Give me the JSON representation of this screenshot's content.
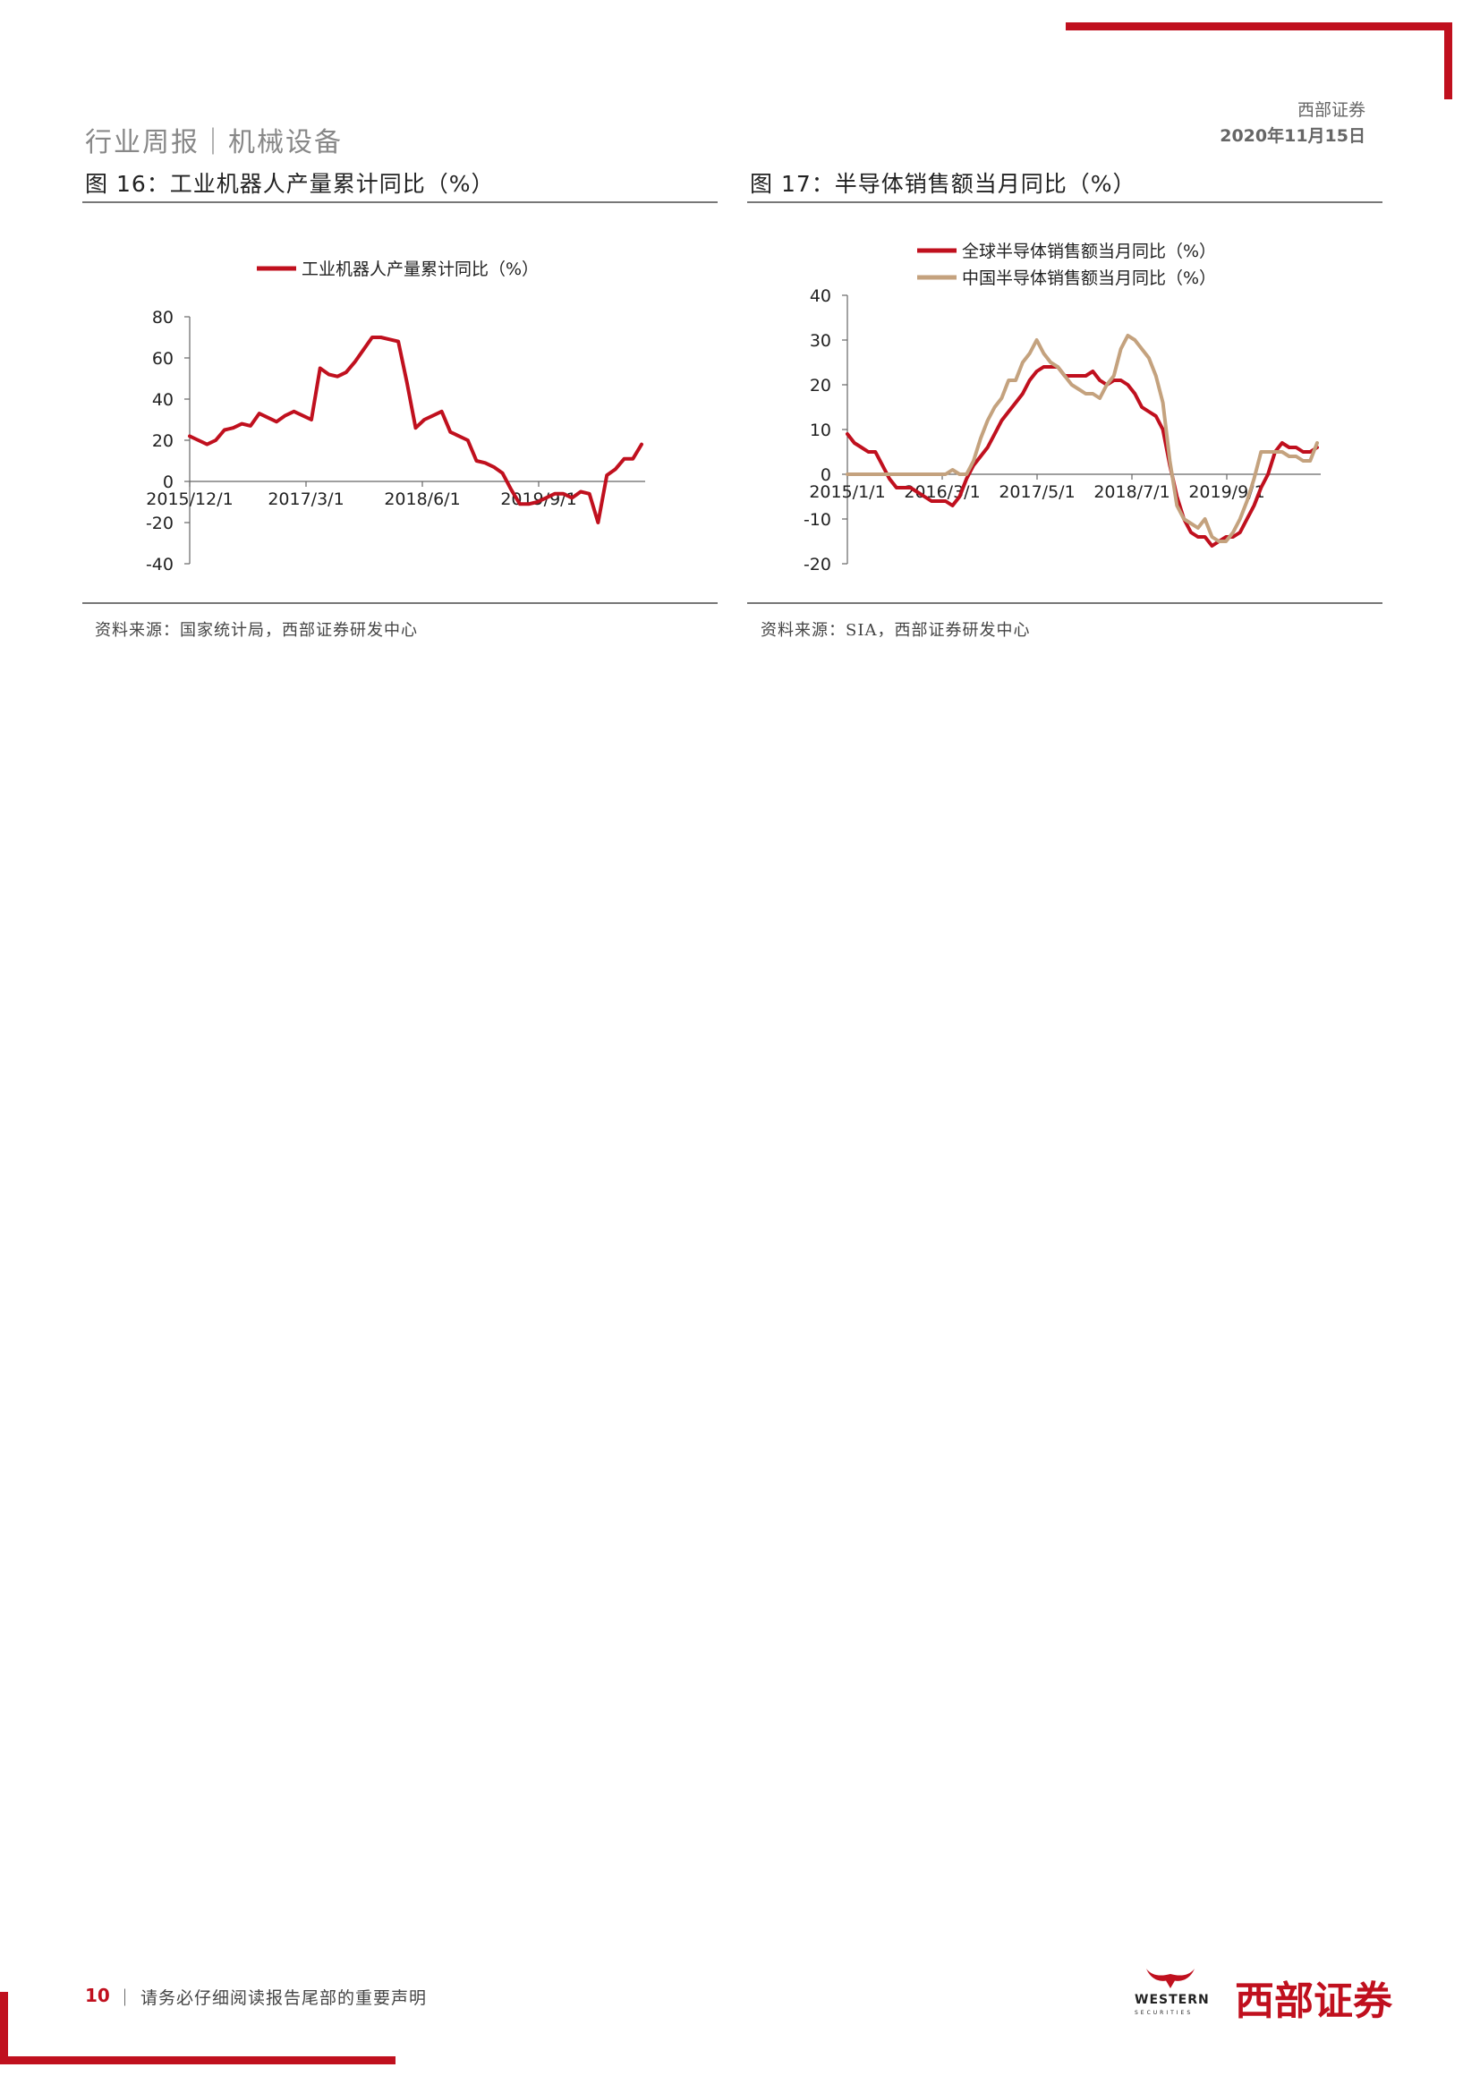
{
  "header": {
    "section": "行业周报｜机械设备",
    "company": "西部证券",
    "date": "2020年11月15日"
  },
  "figures": [
    {
      "title": "图 16：工业机器人产量累计同比（%）",
      "source": "资料来源：国家统计局，西部证券研发中心",
      "chart_data": {
        "type": "line",
        "title": "",
        "xlabel": "",
        "ylabel": "",
        "ylim": [
          -40,
          80
        ],
        "yticks": [
          80,
          60,
          40,
          20,
          0,
          -20,
          -40
        ],
        "xtick_labels": [
          "2015/12/1",
          "2017/3/1",
          "2018/6/1",
          "2019/9/1"
        ],
        "legend": "top-center",
        "grid": false,
        "colors": [
          "#c0101e"
        ],
        "series": [
          {
            "name": "工业机器人产量累计同比（%）",
            "x": [
              "2015/12/1",
              "2016/1/1",
              "2016/3/1",
              "2016/4/1",
              "2016/5/1",
              "2016/6/1",
              "2016/7/1",
              "2016/8/1",
              "2016/9/1",
              "2016/10/1",
              "2016/11/1",
              "2016/12/1",
              "2017/2/1",
              "2017/3/1",
              "2017/4/1",
              "2017/5/1",
              "2017/6/1",
              "2017/7/1",
              "2017/8/1",
              "2017/9/1",
              "2017/10/1",
              "2017/11/1",
              "2017/12/1",
              "2018/2/1",
              "2018/3/1",
              "2018/4/1",
              "2018/5/1",
              "2018/6/1",
              "2018/7/1",
              "2018/8/1",
              "2018/9/1",
              "2018/10/1",
              "2018/11/1",
              "2018/12/1",
              "2019/2/1",
              "2019/3/1",
              "2019/4/1",
              "2019/5/1",
              "2019/6/1",
              "2019/7/1",
              "2019/8/1",
              "2019/9/1",
              "2019/10/1",
              "2019/11/1",
              "2019/12/1",
              "2020/2/1",
              "2020/3/1",
              "2020/4/1",
              "2020/5/1",
              "2020/6/1",
              "2020/7/1",
              "2020/8/1",
              "2020/9/1"
            ],
            "y": [
              22,
              20,
              18,
              20,
              25,
              26,
              28,
              27,
              33,
              31,
              29,
              32,
              34,
              32,
              30,
              55,
              52,
              51,
              53,
              58,
              64,
              70,
              70,
              69,
              68,
              48,
              26,
              30,
              32,
              34,
              24,
              22,
              20,
              10,
              9,
              7,
              4,
              -4,
              -11,
              -11,
              -10,
              -8,
              -6,
              -6,
              -8,
              -5,
              -6,
              -20,
              3,
              6,
              11,
              11,
              18
            ]
          }
        ]
      }
    },
    {
      "title": "图 17：半导体销售额当月同比（%）",
      "source": "资料来源：SIA，西部证券研发中心",
      "chart_data": {
        "type": "line",
        "title": "",
        "xlabel": "",
        "ylabel": "",
        "ylim": [
          -20,
          40
        ],
        "yticks": [
          40,
          30,
          20,
          10,
          0,
          -10,
          -20
        ],
        "xtick_labels": [
          "2015/1/1",
          "2016/3/1",
          "2017/5/1",
          "2018/7/1",
          "2019/9/1"
        ],
        "legend": "top-center",
        "grid": false,
        "colors": [
          "#c0101e",
          "#c4a27e"
        ],
        "series": [
          {
            "name": "全球半导体销售额当月同比（%）",
            "y": [
              9,
              7,
              6,
              5,
              5,
              2,
              -1,
              -3,
              -3,
              -3,
              -4,
              -5,
              -6,
              -6,
              -6,
              -7,
              -5,
              -1,
              2,
              4,
              6,
              9,
              12,
              14,
              16,
              18,
              21,
              23,
              24,
              24,
              24,
              22,
              22,
              22,
              22,
              23,
              21,
              20,
              21,
              21,
              20,
              18,
              15,
              14,
              13,
              10,
              2,
              -5,
              -10,
              -13,
              -14,
              -14,
              -16,
              -15,
              -14,
              -14,
              -13,
              -10,
              -7,
              -3,
              0,
              5,
              7,
              6,
              6,
              5,
              5,
              6
            ]
          },
          {
            "name": "中国半导体销售额当月同比（%）",
            "y": [
              0,
              0,
              0,
              0,
              0,
              0,
              0,
              0,
              0,
              0,
              0,
              0,
              0,
              0,
              0,
              1,
              0,
              0,
              3,
              8,
              12,
              15,
              17,
              21,
              21,
              25,
              27,
              30,
              27,
              25,
              24,
              22,
              20,
              19,
              18,
              18,
              17,
              20,
              22,
              28,
              31,
              30,
              28,
              26,
              22,
              16,
              3,
              -7,
              -10,
              -11,
              -12,
              -10,
              -14,
              -15,
              -15,
              -13,
              -10,
              -6,
              -1,
              5,
              5,
              5,
              5,
              4,
              4,
              3,
              3,
              7
            ]
          }
        ]
      }
    }
  ],
  "footer": {
    "page_number": "10",
    "notice": "｜ 请务必仔细阅读报告尾部的重要声明",
    "logo_cn": "西部证券",
    "logo_en": "WESTERN",
    "logo_en_sub": "SECURITIES"
  }
}
